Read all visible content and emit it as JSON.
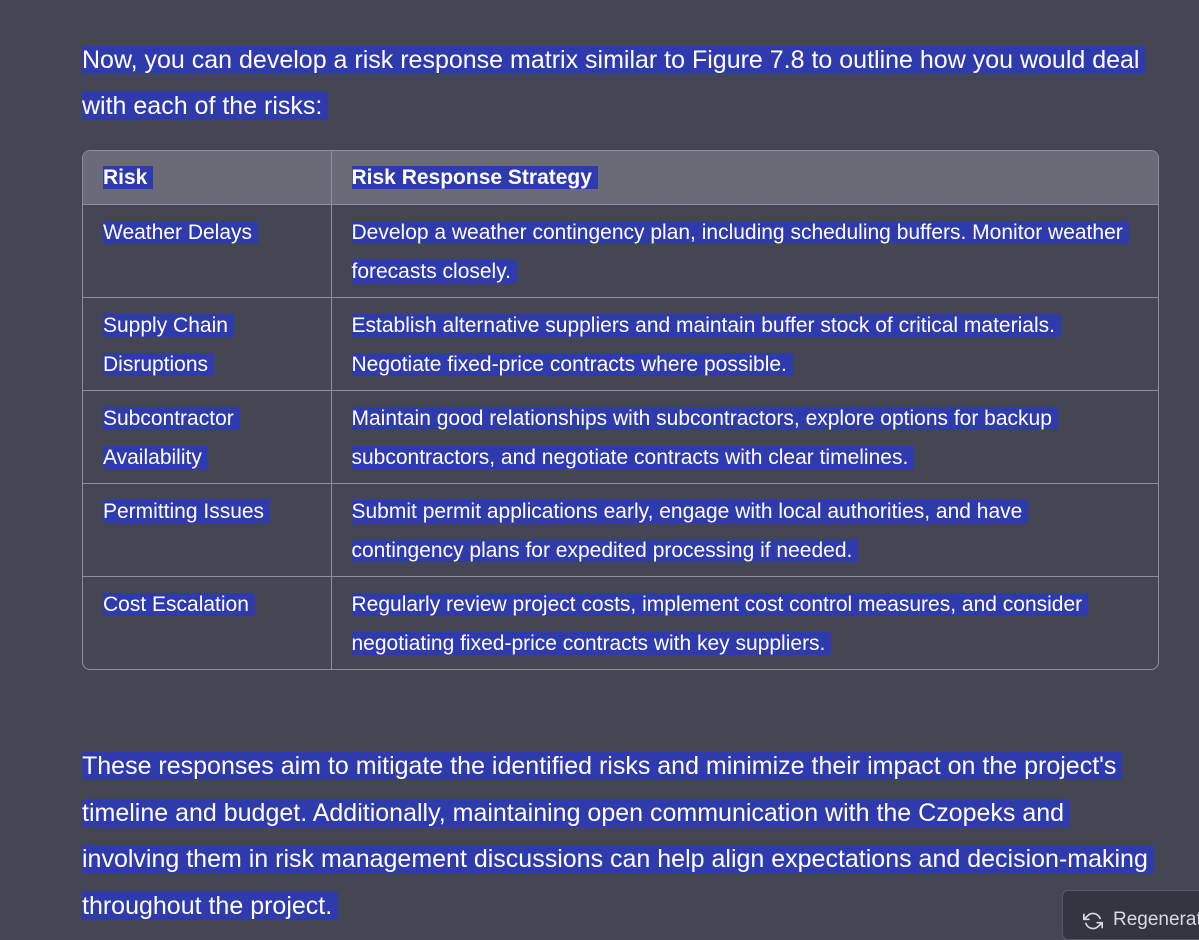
{
  "intro": "Now, you can develop a risk response matrix similar to Figure 7.8 to outline how you would deal with each of the risks:",
  "table": {
    "headers": [
      "Risk",
      "Risk Response Strategy"
    ],
    "rows": [
      [
        "Weather Delays",
        "Develop a weather contingency plan, including scheduling buffers. Monitor weather forecasts closely."
      ],
      [
        "Supply Chain Disruptions",
        "Establish alternative suppliers and maintain buffer stock of critical materials. Negotiate fixed-price contracts where possible."
      ],
      [
        "Subcontractor Availability",
        "Maintain good relationships with subcontractors, explore options for backup subcontractors, and negotiate contracts with clear timelines."
      ],
      [
        "Permitting Issues",
        "Submit permit applications early, engage with local authorities, and have contingency plans for expedited processing if needed."
      ],
      [
        "Cost Escalation",
        "Regularly review project costs, implement cost control measures, and consider negotiating fixed-price contracts with key suppliers."
      ]
    ]
  },
  "outro": "These responses aim to mitigate the identified risks and minimize their impact on the project's timeline and budget. Additionally, maintaining open communication with the Czopeks and involving them in risk management discussions can help align expectations and decision-making throughout the project.",
  "regenerate": {
    "label": "Regenerate",
    "icon": "refresh-icon"
  },
  "colors": {
    "background": "#444654",
    "selection": "#2f3aad",
    "header_row": "#6b6b78",
    "border": "#8e8ea0"
  }
}
